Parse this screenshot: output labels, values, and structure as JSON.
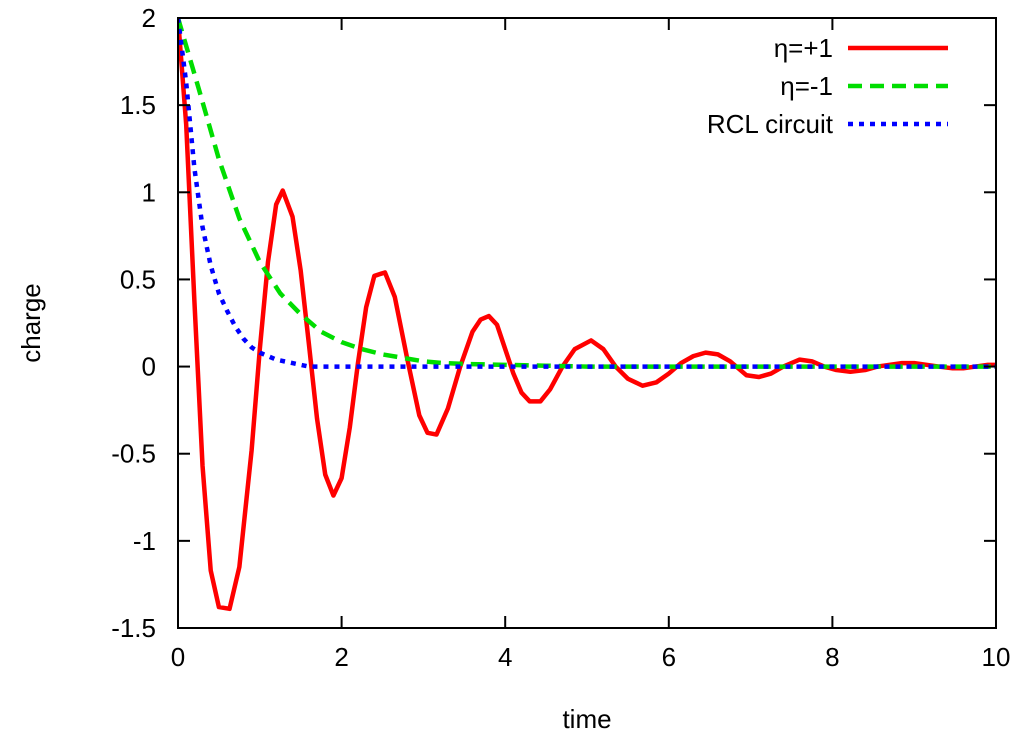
{
  "chart_data": {
    "type": "line",
    "xlabel": "time",
    "ylabel": "charge",
    "xlim": [
      0,
      10
    ],
    "ylim": [
      -1.5,
      2
    ],
    "xticks": [
      0,
      2,
      4,
      6,
      8,
      10
    ],
    "yticks": [
      -1.5,
      -1,
      -0.5,
      0,
      0.5,
      1,
      1.5,
      2
    ],
    "xtick_labels": [
      "0",
      "2",
      "4",
      "6",
      "8",
      "10"
    ],
    "ytick_labels": [
      "-1.5",
      "-1",
      "-0.5",
      "0",
      "0.5",
      "1",
      "1.5",
      "2"
    ],
    "grid": false,
    "legend_position": "top-right",
    "series": [
      {
        "name": "η=+1",
        "color": "#ff0000",
        "style": "solid",
        "x": [
          0,
          0.1,
          0.2,
          0.3,
          0.4,
          0.5,
          0.63,
          0.75,
          0.9,
          1.0,
          1.1,
          1.2,
          1.28,
          1.4,
          1.5,
          1.6,
          1.7,
          1.8,
          1.9,
          2.0,
          2.1,
          2.2,
          2.3,
          2.4,
          2.53,
          2.65,
          2.8,
          2.95,
          3.05,
          3.16,
          3.3,
          3.45,
          3.6,
          3.7,
          3.8,
          3.9,
          4.0,
          4.1,
          4.2,
          4.3,
          4.43,
          4.55,
          4.7,
          4.85,
          5.05,
          5.2,
          5.35,
          5.5,
          5.68,
          5.85,
          6.0,
          6.15,
          6.3,
          6.45,
          6.6,
          6.75,
          6.95,
          7.1,
          7.25,
          7.4,
          7.6,
          7.75,
          7.9,
          8.05,
          8.22,
          8.4,
          8.55,
          8.7,
          8.85,
          9.0,
          9.15,
          9.3,
          9.47,
          9.6,
          9.75,
          9.9,
          10.0
        ],
        "y": [
          2.0,
          1.39,
          0.38,
          -0.57,
          -1.17,
          -1.38,
          -1.39,
          -1.15,
          -0.48,
          0.1,
          0.6,
          0.93,
          1.01,
          0.86,
          0.55,
          0.13,
          -0.3,
          -0.62,
          -0.74,
          -0.64,
          -0.35,
          0.02,
          0.34,
          0.52,
          0.54,
          0.4,
          0.05,
          -0.28,
          -0.38,
          -0.39,
          -0.24,
          0.0,
          0.2,
          0.27,
          0.29,
          0.24,
          0.1,
          -0.04,
          -0.15,
          -0.2,
          -0.2,
          -0.13,
          0.0,
          0.1,
          0.15,
          0.1,
          0.0,
          -0.07,
          -0.11,
          -0.09,
          -0.04,
          0.02,
          0.06,
          0.08,
          0.07,
          0.03,
          -0.05,
          -0.06,
          -0.04,
          0.0,
          0.04,
          0.03,
          0.0,
          -0.02,
          -0.03,
          -0.02,
          0.0,
          0.01,
          0.02,
          0.02,
          0.01,
          0.0,
          -0.01,
          -0.01,
          0.0,
          0.01,
          0.01
        ]
      },
      {
        "name": "η=-1",
        "color": "#00dd00",
        "style": "dashed",
        "x": [
          0,
          0.25,
          0.5,
          0.75,
          1.0,
          1.25,
          1.5,
          1.75,
          2.0,
          2.25,
          2.5,
          2.75,
          3.0,
          3.25,
          3.5,
          4.0,
          4.5,
          5.0,
          6.0,
          7.0,
          8.0,
          9.0,
          10.0
        ],
        "y": [
          2.0,
          1.6,
          1.19,
          0.85,
          0.6,
          0.42,
          0.3,
          0.2,
          0.14,
          0.1,
          0.07,
          0.05,
          0.03,
          0.02,
          0.015,
          0.01,
          0.005,
          0.0,
          0.0,
          0.0,
          0.0,
          0.0,
          0.0
        ]
      },
      {
        "name": "RCL circuit",
        "color": "#0000ff",
        "style": "dotted",
        "x": [
          0,
          0.1,
          0.2,
          0.3,
          0.4,
          0.5,
          0.6,
          0.7,
          0.8,
          0.9,
          1.0,
          1.2,
          1.4,
          1.6,
          2.0,
          3.0,
          4.0,
          5.0,
          6.0,
          7.0,
          8.0,
          9.0,
          10.0
        ],
        "y": [
          2.0,
          1.63,
          1.14,
          0.8,
          0.58,
          0.42,
          0.32,
          0.23,
          0.16,
          0.11,
          0.08,
          0.04,
          0.02,
          0.0,
          0.0,
          0.0,
          0.0,
          0.0,
          0.0,
          0.0,
          0.0,
          0.0,
          0.0
        ]
      }
    ]
  }
}
